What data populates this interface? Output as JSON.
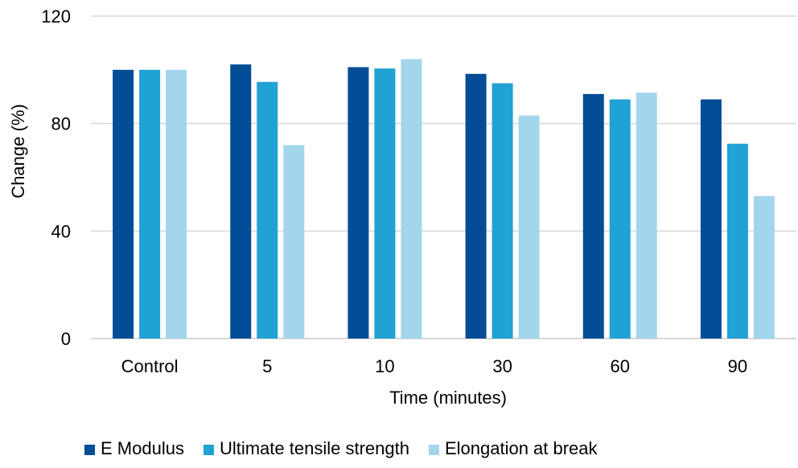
{
  "chart_data": {
    "type": "bar",
    "title": "",
    "xlabel": "Time (minutes)",
    "ylabel": "Change (%)",
    "ylim": [
      0,
      120
    ],
    "yticks": [
      0,
      40,
      80,
      120
    ],
    "categories": [
      "Control",
      "5",
      "10",
      "30",
      "60",
      "90"
    ],
    "series": [
      {
        "name": "E Modulus",
        "color": "#034c96",
        "values": [
          100,
          102,
          101,
          98.5,
          91,
          89
        ]
      },
      {
        "name": "Ultimate tensile strength",
        "color": "#21a2d4",
        "values": [
          100,
          95.5,
          100.5,
          95,
          89,
          72.5
        ]
      },
      {
        "name": "Elongation at break",
        "color": "#a3d6ec",
        "values": [
          100,
          72,
          104,
          83,
          91.5,
          53
        ]
      }
    ],
    "grid": true,
    "legend_position": "bottom"
  }
}
